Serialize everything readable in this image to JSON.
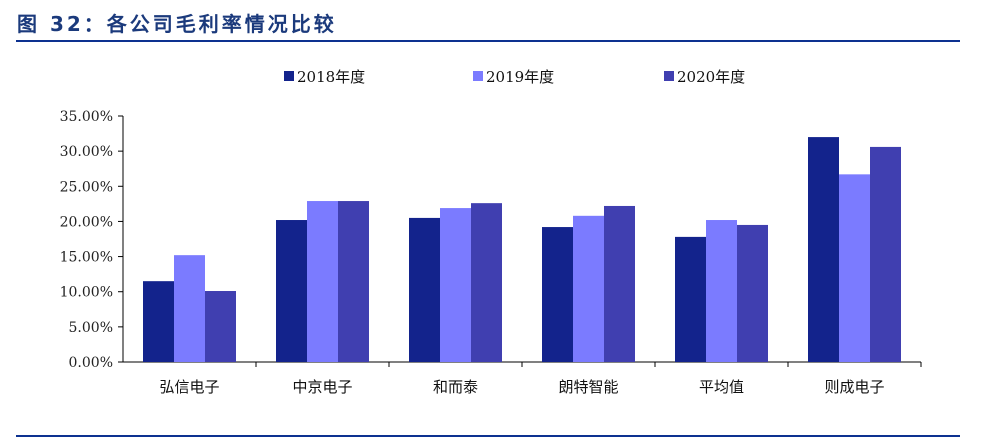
{
  "title": "图 32：各公司毛利率情况比较",
  "chart_data": {
    "type": "bar",
    "title": "各公司毛利率情况比较",
    "xlabel": "",
    "ylabel": "",
    "ylim": [
      0,
      35
    ],
    "yticks": [
      "0.00%",
      "5.00%",
      "10.00%",
      "15.00%",
      "20.00%",
      "25.00%",
      "30.00%",
      "35.00%"
    ],
    "categories": [
      "弘信电子",
      "中京电子",
      "和而泰",
      "朗特智能",
      "平均值",
      "则成电子"
    ],
    "legend_position": "top",
    "grid": false,
    "series": [
      {
        "name": "2018年度",
        "color": "#13238c",
        "values": [
          11.5,
          20.2,
          20.5,
          19.2,
          17.8,
          32.0
        ]
      },
      {
        "name": "2019年度",
        "color": "#7b7bff",
        "values": [
          15.2,
          22.9,
          21.9,
          20.8,
          20.2,
          26.7
        ]
      },
      {
        "name": "2020年度",
        "color": "#403fb0",
        "values": [
          10.1,
          22.9,
          22.6,
          22.2,
          19.5,
          30.6
        ]
      }
    ]
  }
}
